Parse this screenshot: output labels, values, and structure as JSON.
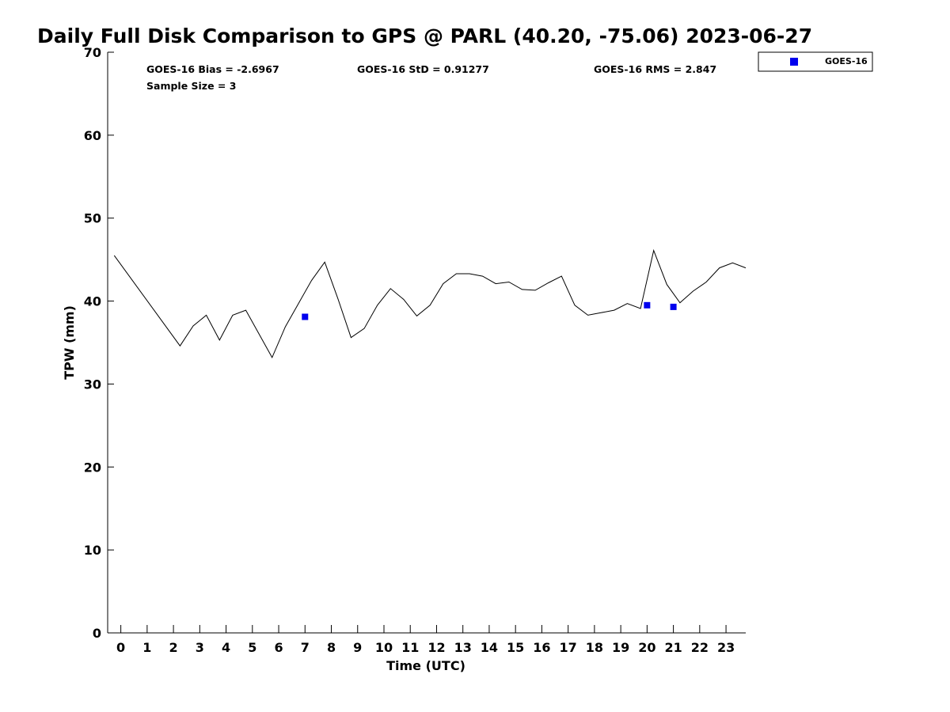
{
  "chart_data": {
    "type": "line",
    "title": "Daily Full Disk Comparison to GPS @ PARL (40.20, -75.06) 2023-06-27",
    "xlabel": "Time (UTC)",
    "ylabel": "TPW (mm)",
    "xlim": [
      -0.5,
      23.75
    ],
    "ylim": [
      0,
      70
    ],
    "x_ticks": [
      0,
      1,
      2,
      3,
      4,
      5,
      6,
      7,
      8,
      9,
      10,
      11,
      12,
      13,
      14,
      15,
      16,
      17,
      18,
      19,
      20,
      21,
      22,
      23
    ],
    "y_ticks": [
      0,
      10,
      20,
      30,
      40,
      50,
      60,
      70
    ],
    "grid": false,
    "legend_position": "top-right",
    "annotations": {
      "bias": "GOES-16 Bias = -2.6967",
      "std": "GOES-16 StD = 0.91277",
      "rms": "GOES-16 RMS = 2.847",
      "sample": "Sample Size = 3"
    },
    "series": [
      {
        "style": "line",
        "color": "#000000",
        "x": [
          -0.25,
          2.25,
          2.75,
          3.25,
          3.75,
          4.25,
          4.75,
          5.75,
          6.25,
          6.75,
          7.25,
          7.75,
          8.25,
          8.75,
          9.25,
          9.75,
          10.25,
          10.75,
          11.25,
          11.75,
          12.25,
          12.75,
          13.25,
          13.75,
          14.25,
          14.75,
          15.25,
          15.75,
          16.25,
          16.75,
          17.25,
          17.75,
          18.25,
          18.75,
          19.25,
          19.75,
          20.25,
          20.75,
          21.25,
          21.75,
          22.25,
          22.75,
          23.25,
          23.75
        ],
        "y": [
          45.5,
          34.6,
          37.0,
          38.3,
          35.3,
          38.3,
          38.9,
          33.2,
          36.9,
          39.7,
          42.5,
          44.7,
          40.3,
          35.6,
          36.7,
          39.5,
          41.5,
          40.2,
          38.2,
          39.5,
          42.1,
          43.3,
          43.3,
          43.0,
          42.1,
          42.3,
          41.4,
          41.3,
          42.2,
          43.0,
          39.5,
          38.3,
          38.6,
          38.9,
          39.7,
          39.1,
          46.1,
          42.0,
          39.8,
          41.2,
          42.3,
          44.0,
          44.6,
          44.0
        ]
      },
      {
        "name": "GOES-16",
        "style": "marker",
        "color": "#0000ee",
        "x": [
          7.0,
          20.0,
          21.0
        ],
        "y": [
          38.1,
          39.5,
          39.3
        ]
      }
    ]
  }
}
